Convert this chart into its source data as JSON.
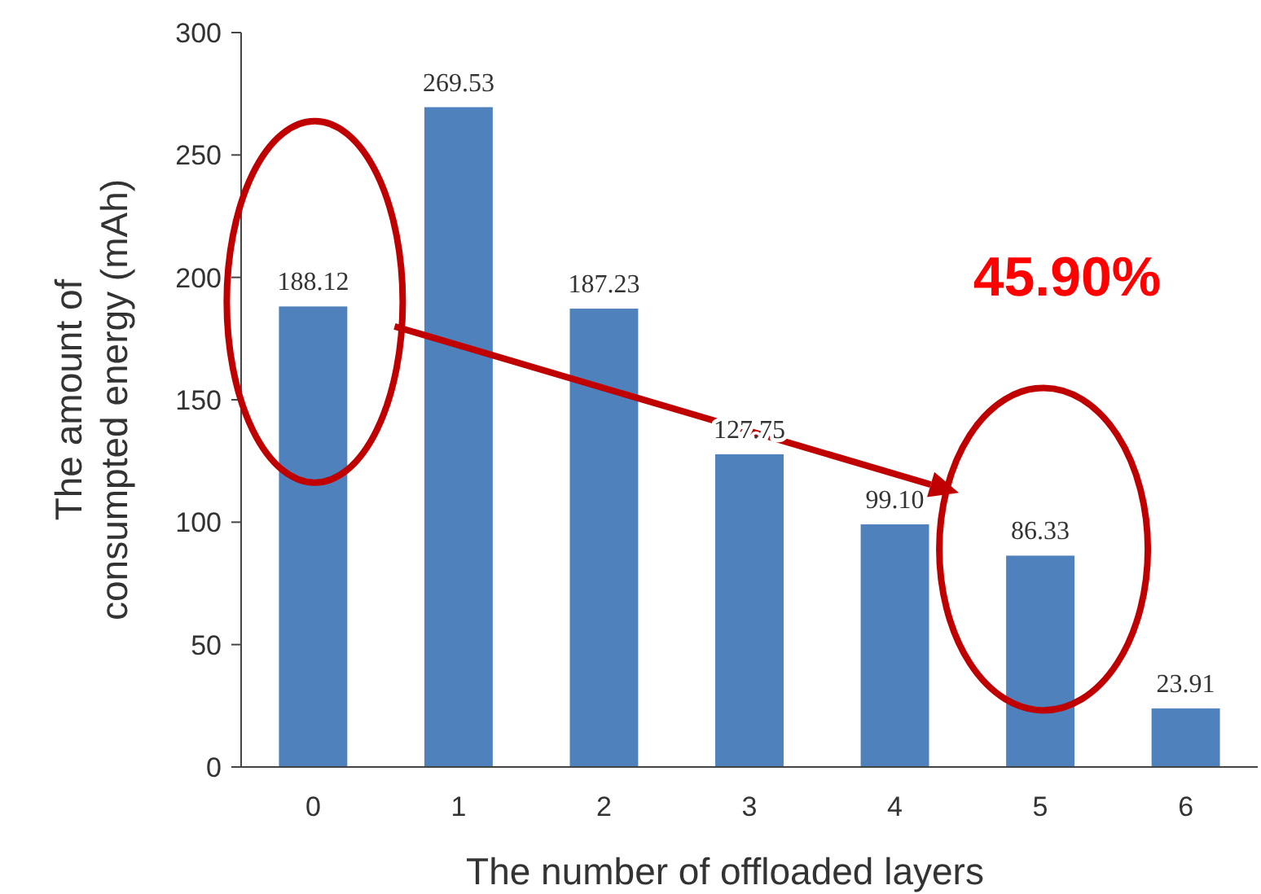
{
  "chart_data": {
    "type": "bar",
    "xlabel": "The number of offloaded layers",
    "ylabel": "The amount of consumpted energy (mAh)",
    "categories": [
      "0",
      "1",
      "2",
      "3",
      "4",
      "5",
      "6"
    ],
    "values": [
      188.12,
      269.53,
      187.23,
      127.75,
      99.1,
      86.33,
      23.91
    ],
    "value_labels": [
      "188.12",
      "269.53",
      "187.23",
      "127.75",
      "99.10",
      "86.33",
      "23.91"
    ],
    "color": "#4f81bd",
    "ylim": [
      0,
      300
    ],
    "yticks": [
      0,
      50,
      100,
      150,
      200,
      250,
      300
    ],
    "grid": false,
    "annotations": [
      "45.90%"
    ]
  }
}
